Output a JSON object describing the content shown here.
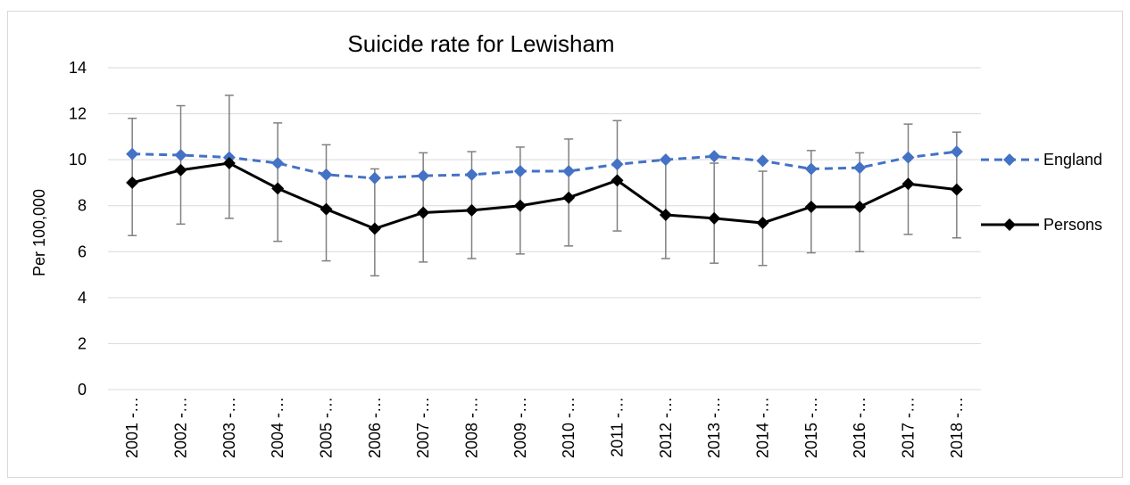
{
  "chart_data": {
    "type": "line",
    "title": "Suicide rate for Lewisham",
    "xlabel": "",
    "ylabel": "Per 100,000",
    "ylim": [
      0,
      14
    ],
    "yticks": [
      0,
      2,
      4,
      6,
      8,
      10,
      12,
      14
    ],
    "grid": true,
    "legend_position": "right",
    "categories": [
      "2001 -…",
      "2002 -…",
      "2003 -…",
      "2004 -…",
      "2005 -…",
      "2006 -…",
      "2007 -…",
      "2008 -…",
      "2009 -…",
      "2010 -…",
      "2011 -…",
      "2012 -…",
      "2013 -…",
      "2014 -…",
      "2015 -…",
      "2016 -…",
      "2017 -…",
      "2018 -…"
    ],
    "series": [
      {
        "name": "England",
        "color": "#4472c4",
        "line_style": "dashed",
        "marker": "diamond",
        "values": [
          10.25,
          10.2,
          10.1,
          9.85,
          9.35,
          9.2,
          9.3,
          9.35,
          9.5,
          9.5,
          9.8,
          10.0,
          10.15,
          9.95,
          9.6,
          9.65,
          10.1,
          10.35
        ]
      },
      {
        "name": "Persons",
        "color": "#000000",
        "line_style": "solid",
        "marker": "diamond",
        "values": [
          9.0,
          9.55,
          9.85,
          8.75,
          7.85,
          7.0,
          7.7,
          7.8,
          8.0,
          8.35,
          9.1,
          7.6,
          7.45,
          7.25,
          7.95,
          7.95,
          8.95,
          8.7
        ],
        "error_low": [
          6.7,
          7.2,
          7.45,
          6.45,
          5.6,
          4.95,
          5.55,
          5.7,
          5.9,
          6.25,
          6.9,
          5.7,
          5.5,
          5.4,
          5.95,
          6.0,
          6.75,
          6.6
        ],
        "error_high": [
          11.8,
          12.35,
          12.8,
          11.6,
          10.65,
          9.6,
          10.3,
          10.35,
          10.55,
          10.9,
          11.7,
          9.95,
          9.85,
          9.5,
          10.4,
          10.3,
          11.55,
          11.2
        ]
      }
    ]
  }
}
